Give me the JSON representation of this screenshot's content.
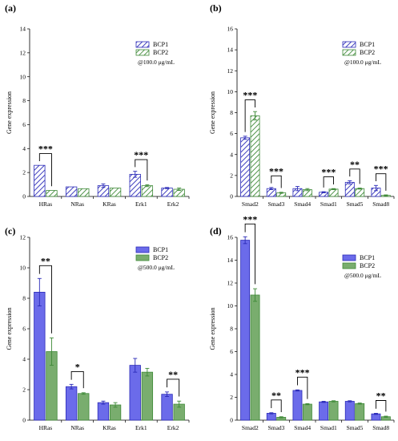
{
  "colors": {
    "bcp1": "#6b6bea",
    "bcp1_dark": "#2b2bb8",
    "bcp2": "#79ad6e",
    "bcp2_dark": "#3f8a38",
    "axis": "#000000"
  },
  "chart_data": [
    {
      "panel": "(a)",
      "type": "bar",
      "style": "hatched",
      "categories": [
        "HRas",
        "NRas",
        "KRas",
        "Erk1",
        "Erk2"
      ],
      "series": [
        {
          "name": "BCP1",
          "values": [
            2.6,
            0.8,
            0.9,
            1.85,
            0.7
          ],
          "errors": [
            0,
            0,
            0.15,
            0.25,
            0.05
          ]
        },
        {
          "name": "BCP2",
          "values": [
            0.5,
            0.65,
            0.7,
            0.9,
            0.6
          ],
          "errors": [
            0,
            0,
            0,
            0.08,
            0.1
          ]
        }
      ],
      "ylabel": "Gene expression",
      "ylim": [
        0,
        14
      ],
      "yticks": [
        0,
        2,
        4,
        6,
        8,
        10,
        12,
        14
      ],
      "concentration": "@100.0 μg/mL",
      "significance": [
        {
          "category": 0,
          "label": "***"
        },
        {
          "category": 3,
          "label": "***"
        }
      ],
      "legend_position": "top-right"
    },
    {
      "panel": "(b)",
      "type": "bar",
      "style": "hatched",
      "categories": [
        "Smad2",
        "Smad3",
        "Smad4",
        "Smad1",
        "Smad5",
        "Smad8"
      ],
      "series": [
        {
          "name": "BCP1",
          "values": [
            5.6,
            0.75,
            0.75,
            0.4,
            1.35,
            0.8
          ],
          "errors": [
            0.15,
            0.1,
            0.2,
            0.05,
            0.15,
            0.25
          ]
        },
        {
          "name": "BCP2",
          "values": [
            7.7,
            0.35,
            0.65,
            0.7,
            0.75,
            0.1
          ],
          "errors": [
            0.4,
            0.05,
            0.1,
            0.05,
            0.05,
            0.05
          ]
        }
      ],
      "ylabel": "Gene expression",
      "ylim": [
        0,
        16
      ],
      "yticks": [
        0,
        2,
        4,
        6,
        8,
        10,
        12,
        14,
        16
      ],
      "concentration": "@100.0 μg/mL",
      "significance": [
        {
          "category": 0,
          "label": "***"
        },
        {
          "category": 1,
          "label": "***"
        },
        {
          "category": 3,
          "label": "***"
        },
        {
          "category": 4,
          "label": "**"
        },
        {
          "category": 5,
          "label": "***"
        }
      ],
      "legend_position": "top-right"
    },
    {
      "panel": "(c)",
      "type": "bar",
      "style": "solid",
      "categories": [
        "HRas",
        "NRas",
        "KRas",
        "Erk1",
        "Erk2"
      ],
      "series": [
        {
          "name": "BCP1",
          "values": [
            8.4,
            2.2,
            1.15,
            3.6,
            1.7
          ],
          "errors": [
            0.9,
            0.15,
            0.1,
            0.45,
            0.15
          ]
        },
        {
          "name": "BCP2",
          "values": [
            4.5,
            1.75,
            1.0,
            3.15,
            1.05
          ],
          "errors": [
            0.9,
            0.05,
            0.15,
            0.25,
            0.2
          ]
        }
      ],
      "ylabel": "Gene expression",
      "ylim": [
        0,
        12
      ],
      "yticks": [
        0,
        2,
        4,
        6,
        8,
        10,
        12
      ],
      "concentration": "@500.0 μg/mL",
      "significance": [
        {
          "category": 0,
          "label": "**"
        },
        {
          "category": 1,
          "label": "*"
        },
        {
          "category": 4,
          "label": "**"
        }
      ],
      "legend_position": "top-right"
    },
    {
      "panel": "(d)",
      "type": "bar",
      "style": "solid",
      "categories": [
        "Smad2",
        "Smad3",
        "Smad4",
        "Smad1",
        "Smad5",
        "Smad8"
      ],
      "series": [
        {
          "name": "BCP1",
          "values": [
            15.75,
            0.6,
            2.6,
            1.6,
            1.65,
            0.55
          ],
          "errors": [
            0.3,
            0.05,
            0.05,
            0.05,
            0.05,
            0.05
          ]
        },
        {
          "name": "BCP2",
          "values": [
            10.95,
            0.25,
            1.4,
            1.65,
            1.45,
            0.3
          ],
          "errors": [
            0.55,
            0.05,
            0.05,
            0.05,
            0.05,
            0.05
          ]
        }
      ],
      "ylabel": "Gene expression",
      "ylim": [
        0,
        16
      ],
      "yticks": [
        0,
        2,
        4,
        6,
        8,
        10,
        12,
        14,
        16
      ],
      "concentration": "@500.0 μg/mL",
      "significance": [
        {
          "category": 0,
          "label": "***"
        },
        {
          "category": 1,
          "label": "**"
        },
        {
          "category": 2,
          "label": "***"
        },
        {
          "category": 5,
          "label": "**"
        }
      ],
      "legend_position": "top-right"
    }
  ]
}
